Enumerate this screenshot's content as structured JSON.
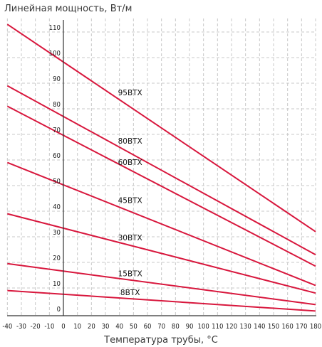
{
  "chart_data": {
    "type": "line",
    "title": "Линейная мощность, Вт/м",
    "xlabel": "Температура трубы, °С",
    "ylabel": "",
    "xlim": [
      -40,
      180
    ],
    "ylim": [
      0,
      115
    ],
    "x_ticks": [
      -40,
      -30,
      -20,
      -10,
      0,
      10,
      20,
      30,
      40,
      50,
      60,
      70,
      80,
      90,
      100,
      110,
      120,
      130,
      140,
      150,
      160,
      170,
      180
    ],
    "y_ticks": [
      0,
      10,
      20,
      30,
      40,
      50,
      60,
      70,
      80,
      90,
      100,
      110
    ],
    "grid": true,
    "colors": {
      "line": "#d8173d",
      "grid": "#c8c8c8",
      "axis": "#333333"
    },
    "series": [
      {
        "name": "95BTX",
        "x": [
          -40,
          180
        ],
        "y": [
          113,
          32
        ]
      },
      {
        "name": "80BTX",
        "x": [
          -40,
          180
        ],
        "y": [
          89,
          23
        ]
      },
      {
        "name": "60BTX",
        "x": [
          -40,
          180
        ],
        "y": [
          81,
          18.5
        ]
      },
      {
        "name": "45BTX",
        "x": [
          -40,
          180
        ],
        "y": [
          59,
          11
        ]
      },
      {
        "name": "30BTX",
        "x": [
          -40,
          180
        ],
        "y": [
          39,
          8
        ]
      },
      {
        "name": "15BTX",
        "x": [
          -40,
          180
        ],
        "y": [
          19.5,
          3.5
        ]
      },
      {
        "name": "8BTX",
        "x": [
          -40,
          180
        ],
        "y": [
          9,
          1
        ]
      }
    ]
  }
}
